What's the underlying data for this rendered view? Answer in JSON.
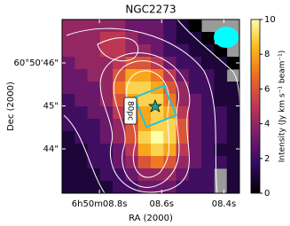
{
  "chart_data": {
    "type": "heatmap",
    "title": "NGC2273",
    "x_label": "RA (2000)",
    "y_label": "Dec (2000)",
    "xlim": [
      8.92,
      8.35
    ],
    "ylim": [
      42.97,
      47.01
    ],
    "xticks": [
      {
        "value": 8.8,
        "label": "6h50m08.8s"
      },
      {
        "value": 8.6,
        "label": "08.6s"
      },
      {
        "value": 8.4,
        "label": "08.4s"
      }
    ],
    "yticks": [
      {
        "value": 46,
        "label": "60°50'46\""
      },
      {
        "value": 45,
        "label": "45\""
      },
      {
        "value": 44,
        "label": "44\""
      }
    ],
    "z": [
      [
        4,
        4,
        4,
        4,
        4,
        3,
        3,
        3,
        2,
        1,
        0,
        null,
        null,
        null
      ],
      [
        4,
        4,
        4,
        5,
        5,
        4,
        3,
        3,
        2,
        1,
        1,
        0,
        null,
        null
      ],
      [
        4,
        4,
        4,
        5,
        5,
        4,
        4,
        3,
        2,
        2,
        1,
        1,
        0,
        null
      ],
      [
        3,
        4,
        4,
        4,
        5,
        6,
        6,
        5,
        3,
        2,
        2,
        1,
        1,
        0
      ],
      [
        3,
        3,
        4,
        4,
        6,
        8,
        8,
        7,
        5,
        3,
        2,
        2,
        1,
        null
      ],
      [
        3,
        3,
        3,
        4,
        7,
        9,
        9,
        8,
        6,
        4,
        2,
        2,
        1,
        1
      ],
      [
        2,
        3,
        3,
        4,
        6,
        8,
        9,
        9,
        7,
        4,
        3,
        2,
        1,
        1
      ],
      [
        2,
        2,
        3,
        3,
        5,
        7,
        8,
        9,
        8,
        5,
        3,
        2,
        2,
        1
      ],
      [
        2,
        2,
        2,
        3,
        4,
        6,
        8,
        9,
        9,
        6,
        3,
        2,
        2,
        1
      ],
      [
        1,
        2,
        2,
        3,
        4,
        6,
        9,
        10,
        9,
        6,
        3,
        2,
        2,
        1
      ],
      [
        1,
        1,
        2,
        2,
        3,
        5,
        8,
        9,
        8,
        5,
        3,
        2,
        1,
        1
      ],
      [
        1,
        1,
        2,
        2,
        3,
        4,
        6,
        7,
        6,
        4,
        3,
        2,
        2,
        1
      ],
      [
        1,
        1,
        1,
        2,
        2,
        3,
        4,
        4,
        4,
        3,
        2,
        2,
        null,
        1
      ],
      [
        1,
        1,
        1,
        1,
        2,
        2,
        3,
        3,
        3,
        2,
        2,
        2,
        null,
        1
      ]
    ],
    "colormap": [
      "#000004",
      "#320a5e",
      "#781c6d",
      "#bc3754",
      "#ed6925",
      "#fbb61a",
      "#fcffa4"
    ],
    "colorbar_label": "Intensity (Jy km s⁻¹ beam⁻¹)",
    "zlim": [
      0,
      10
    ],
    "zticks": [
      0,
      2,
      4,
      6,
      8,
      10
    ],
    "annotation": "80pc"
  }
}
